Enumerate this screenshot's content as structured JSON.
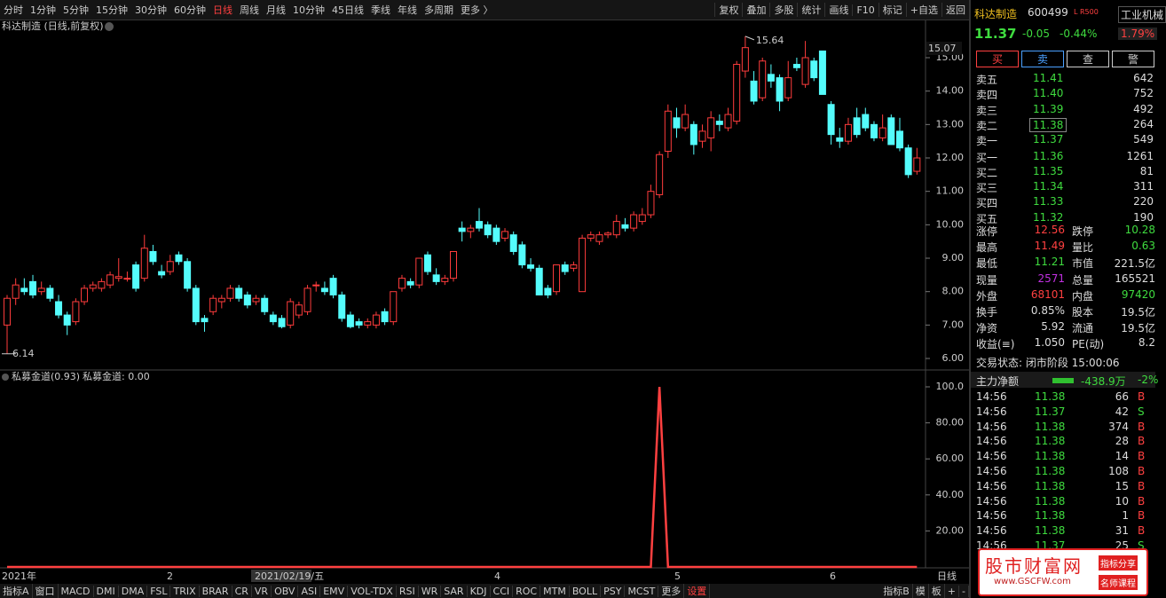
{
  "toolbar": {
    "periods": [
      "分时",
      "1分钟",
      "5分钟",
      "15分钟",
      "30分钟",
      "60分钟",
      "日线",
      "周线",
      "月线",
      "10分钟",
      "45日线",
      "季线",
      "年线",
      "多周期",
      "更多 〉"
    ],
    "tools": [
      "复权",
      "叠加",
      "多股",
      "统计",
      "画线",
      "F10",
      "标记",
      "+自选",
      "返回"
    ]
  },
  "kline": {
    "title": "科达制造 (日线,前复权)",
    "yticks": [
      {
        "value": 6,
        "label": "6.00"
      },
      {
        "value": 7,
        "label": "7.00"
      },
      {
        "value": 8,
        "label": "8.00"
      },
      {
        "value": 9,
        "label": "9.00"
      },
      {
        "value": 10,
        "label": "10.00"
      },
      {
        "value": 11,
        "label": "11.00"
      },
      {
        "value": 12,
        "label": "12.00"
      },
      {
        "value": 13,
        "label": "13.00"
      },
      {
        "value": 14,
        "label": "14.00"
      },
      {
        "value": 15,
        "label": "15.00"
      }
    ],
    "axis_top_label": "15.07",
    "high_label": "15.64",
    "low_label": "6.14",
    "candles": [
      [
        7.0,
        7.9,
        6.14,
        7.8
      ],
      [
        7.8,
        8.4,
        7.6,
        8.2
      ],
      [
        8.1,
        8.4,
        7.9,
        8.0
      ],
      [
        8.3,
        8.5,
        7.8,
        7.9
      ],
      [
        8.0,
        8.3,
        7.9,
        8.1
      ],
      [
        8.1,
        8.2,
        7.7,
        7.8
      ],
      [
        7.7,
        7.9,
        7.2,
        7.3
      ],
      [
        7.3,
        7.4,
        6.7,
        7.0
      ],
      [
        7.1,
        7.8,
        7.0,
        7.7
      ],
      [
        7.7,
        8.2,
        7.6,
        8.1
      ],
      [
        8.1,
        8.3,
        8.0,
        8.2
      ],
      [
        8.1,
        8.4,
        8.0,
        8.3
      ],
      [
        8.2,
        8.6,
        8.1,
        8.5
      ],
      [
        8.4,
        9.0,
        8.3,
        8.45
      ],
      [
        8.4,
        8.6,
        8.3,
        8.4
      ],
      [
        8.8,
        8.9,
        8.0,
        8.1
      ],
      [
        8.4,
        9.7,
        8.3,
        9.3
      ],
      [
        9.2,
        9.4,
        8.8,
        8.9
      ],
      [
        8.6,
        8.8,
        8.4,
        8.5
      ],
      [
        8.6,
        9.1,
        8.5,
        8.9
      ],
      [
        9.1,
        9.2,
        8.8,
        8.9
      ],
      [
        8.9,
        9.0,
        8.0,
        8.1
      ],
      [
        8.1,
        8.2,
        7.0,
        7.1
      ],
      [
        7.2,
        7.3,
        6.8,
        7.1
      ],
      [
        7.4,
        7.9,
        7.3,
        7.8
      ],
      [
        7.7,
        7.9,
        7.5,
        7.8
      ],
      [
        7.8,
        8.2,
        7.7,
        8.1
      ],
      [
        8.1,
        8.2,
        7.7,
        7.8
      ],
      [
        7.9,
        8.0,
        7.5,
        7.6
      ],
      [
        7.7,
        7.9,
        7.6,
        7.8
      ],
      [
        7.8,
        7.9,
        7.3,
        7.4
      ],
      [
        7.3,
        7.4,
        7.0,
        7.1
      ],
      [
        7.2,
        7.3,
        6.9,
        6.95
      ],
      [
        7.0,
        7.8,
        6.9,
        7.7
      ],
      [
        7.3,
        7.7,
        7.2,
        7.6
      ],
      [
        7.4,
        8.2,
        7.3,
        8.1
      ],
      [
        8.2,
        8.3,
        8.0,
        8.2
      ],
      [
        8.1,
        8.3,
        7.9,
        8.0
      ],
      [
        8.4,
        8.5,
        7.8,
        7.9
      ],
      [
        7.9,
        8.0,
        7.1,
        7.2
      ],
      [
        7.3,
        7.4,
        6.9,
        6.95
      ],
      [
        7.1,
        7.2,
        6.9,
        7.0
      ],
      [
        7.0,
        7.2,
        6.9,
        7.1
      ],
      [
        7.0,
        7.4,
        6.9,
        7.3
      ],
      [
        7.4,
        7.5,
        7.0,
        7.1
      ],
      [
        7.1,
        8.0,
        7.0,
        8.0
      ],
      [
        8.1,
        8.5,
        8.0,
        8.4
      ],
      [
        8.3,
        8.4,
        8.1,
        8.2
      ],
      [
        8.2,
        9.0,
        8.1,
        9.0
      ],
      [
        9.1,
        9.2,
        8.5,
        8.6
      ],
      [
        8.5,
        8.7,
        8.2,
        8.3
      ],
      [
        8.3,
        8.5,
        8.2,
        8.4
      ],
      [
        8.4,
        9.2,
        8.3,
        9.2
      ],
      [
        9.9,
        10.1,
        9.5,
        9.8
      ],
      [
        9.8,
        10.0,
        9.6,
        9.9
      ],
      [
        10.1,
        10.5,
        9.8,
        9.9
      ],
      [
        10.0,
        10.1,
        9.6,
        9.7
      ],
      [
        9.9,
        10.0,
        9.4,
        9.5
      ],
      [
        9.6,
        9.9,
        9.5,
        9.8
      ],
      [
        9.7,
        9.8,
        9.1,
        9.2
      ],
      [
        9.4,
        9.5,
        8.7,
        8.8
      ],
      [
        8.8,
        9.0,
        8.6,
        8.7
      ],
      [
        8.7,
        8.8,
        7.9,
        7.9
      ],
      [
        8.1,
        8.2,
        7.8,
        7.9
      ],
      [
        8.0,
        8.8,
        7.9,
        8.8
      ],
      [
        8.8,
        8.9,
        8.5,
        8.6
      ],
      [
        8.7,
        8.9,
        8.6,
        8.8
      ],
      [
        8.0,
        9.7,
        8.0,
        9.6
      ],
      [
        9.6,
        9.8,
        9.5,
        9.7
      ],
      [
        9.5,
        9.8,
        9.4,
        9.7
      ],
      [
        9.7,
        9.8,
        9.6,
        9.75
      ],
      [
        9.7,
        10.3,
        9.6,
        10.1
      ],
      [
        10.0,
        10.2,
        9.8,
        9.9
      ],
      [
        9.9,
        10.4,
        9.8,
        10.3
      ],
      [
        10.1,
        10.5,
        10.0,
        10.3
      ],
      [
        10.3,
        11.2,
        10.2,
        11.0
      ],
      [
        10.9,
        12.2,
        10.8,
        12.1
      ],
      [
        12.2,
        13.6,
        12.0,
        13.4
      ],
      [
        13.2,
        13.5,
        12.6,
        12.9
      ],
      [
        12.9,
        13.6,
        12.8,
        13.3
      ],
      [
        13.0,
        13.1,
        12.1,
        12.4
      ],
      [
        12.5,
        13.0,
        12.3,
        12.8
      ],
      [
        12.6,
        13.4,
        12.2,
        13.2
      ],
      [
        13.1,
        13.3,
        12.8,
        13.0
      ],
      [
        12.9,
        13.5,
        12.8,
        13.3
      ],
      [
        13.1,
        14.9,
        13.0,
        14.8
      ],
      [
        14.6,
        15.64,
        14.4,
        15.3
      ],
      [
        14.3,
        14.6,
        13.6,
        13.7
      ],
      [
        13.8,
        15.0,
        13.7,
        14.9
      ],
      [
        14.5,
        14.8,
        14.1,
        14.3
      ],
      [
        14.4,
        14.5,
        13.4,
        13.7
      ],
      [
        13.8,
        14.9,
        13.7,
        14.4
      ],
      [
        14.8,
        15.0,
        14.6,
        14.7
      ],
      [
        14.2,
        15.5,
        14.1,
        15.0
      ],
      [
        14.9,
        15.0,
        14.3,
        14.4
      ],
      [
        15.2,
        15.2,
        13.9,
        13.9
      ],
      [
        13.6,
        13.7,
        12.4,
        12.7
      ],
      [
        12.6,
        12.9,
        12.3,
        12.5
      ],
      [
        12.5,
        13.2,
        12.4,
        13.0
      ],
      [
        13.2,
        13.5,
        12.6,
        12.7
      ],
      [
        13.3,
        13.5,
        12.8,
        12.9
      ],
      [
        13.0,
        13.1,
        12.5,
        12.6
      ],
      [
        12.6,
        13.3,
        12.5,
        12.9
      ],
      [
        13.2,
        13.3,
        12.4,
        12.4
      ],
      [
        12.8,
        13.2,
        12.2,
        12.3
      ],
      [
        12.3,
        12.4,
        11.4,
        11.5
      ],
      [
        11.6,
        12.3,
        11.5,
        12.0
      ]
    ]
  },
  "indicator": {
    "title": "私募金道(0.93)",
    "value_label": "私募金道: 0.00",
    "yticks": [
      {
        "value": 20,
        "label": "20.00"
      },
      {
        "value": 40,
        "label": "40.00"
      },
      {
        "value": 60,
        "label": "60.00"
      },
      {
        "value": 80,
        "label": "80.00"
      },
      {
        "value": 100,
        "label": "100.0"
      }
    ],
    "values": [
      0,
      0,
      0,
      0,
      0,
      0,
      0,
      0,
      0,
      0,
      0,
      0,
      0,
      0,
      0,
      0,
      0,
      0,
      0,
      0,
      0,
      0,
      0,
      0,
      0,
      0,
      0,
      0,
      0,
      0,
      0,
      0,
      0,
      0,
      0,
      0,
      0,
      0,
      0,
      0,
      0,
      0,
      0,
      0,
      0,
      0,
      0,
      0,
      0,
      0,
      0,
      0,
      0,
      0,
      0,
      0,
      0,
      0,
      0,
      0,
      0,
      0,
      0,
      0,
      0,
      0,
      0,
      0,
      0,
      0,
      0,
      0,
      0,
      0,
      0,
      0,
      100,
      0,
      0,
      0,
      0,
      0,
      0,
      0,
      0,
      0,
      0,
      0,
      0,
      0,
      0,
      0,
      0,
      0,
      0,
      0,
      0,
      0,
      0,
      0,
      0,
      0,
      0,
      0,
      0,
      0,
      0
    ]
  },
  "x_axis": {
    "labels": [
      "2021年",
      "2",
      "2021/02/19/五",
      "4",
      "5",
      "6"
    ],
    "period": "日线"
  },
  "bottom_tabs": {
    "left": [
      "指标A",
      "窗口",
      "MACD",
      "DMI",
      "DMA",
      "FSL",
      "TRIX",
      "BRAR",
      "CR",
      "VR",
      "OBV",
      "ASI",
      "EMV",
      "VOL-TDX",
      "RSI",
      "WR",
      "SAR",
      "KDJ",
      "CCI",
      "ROC",
      "MTM",
      "BOLL",
      "PSY",
      "MCST",
      "更多",
      "设置"
    ],
    "right": [
      "指标B",
      "模",
      "板",
      "+",
      "-"
    ]
  },
  "quote": {
    "name": "科达制造",
    "code": "600499",
    "tag": "L R500",
    "industry": "工业机械",
    "price": "11.37",
    "change": "-0.05",
    "pct": "-0.44%",
    "industry_pct": "1.79%",
    "buttons": [
      "买",
      "卖",
      "查",
      "警"
    ],
    "book": [
      [
        "卖五",
        "11.41",
        "642"
      ],
      [
        "卖四",
        "11.40",
        "752"
      ],
      [
        "卖三",
        "11.39",
        "492"
      ],
      [
        "卖二",
        "11.38",
        "264"
      ],
      [
        "卖一",
        "11.37",
        "549"
      ],
      [
        "买一",
        "11.36",
        "1261"
      ],
      [
        "买二",
        "11.35",
        "81"
      ],
      [
        "买三",
        "11.34",
        "311"
      ],
      [
        "买四",
        "11.33",
        "220"
      ],
      [
        "买五",
        "11.32",
        "190"
      ]
    ],
    "stats": [
      [
        "涨停",
        "12.56",
        "跌停",
        "10.28"
      ],
      [
        "最高",
        "11.49",
        "量比",
        "0.63"
      ],
      [
        "最低",
        "11.21",
        "市值",
        "221.5亿"
      ],
      [
        "现量",
        "2571",
        "总量",
        "165521"
      ],
      [
        "外盘",
        "68101",
        "内盘",
        "97420"
      ],
      [
        "换手",
        "0.85%",
        "股本",
        "19.5亿"
      ],
      [
        "净资",
        "5.92",
        "流通",
        "19.5亿"
      ],
      [
        "收益(≡)",
        "1.050",
        "PE(动)",
        "8.2"
      ]
    ],
    "status": "交易状态: 闭市阶段 15:00:06",
    "flow_label": "主力净额",
    "flow_value": "-438.9万",
    "flow_pct": "-2%",
    "trades": [
      [
        "14:56",
        "11.38",
        "66",
        "B"
      ],
      [
        "14:56",
        "11.37",
        "42",
        "S"
      ],
      [
        "14:56",
        "11.38",
        "374",
        "B"
      ],
      [
        "14:56",
        "11.38",
        "28",
        "B"
      ],
      [
        "14:56",
        "11.38",
        "14",
        "B"
      ],
      [
        "14:56",
        "11.38",
        "108",
        "B"
      ],
      [
        "14:56",
        "11.38",
        "15",
        "B"
      ],
      [
        "14:56",
        "11.38",
        "10",
        "B"
      ],
      [
        "14:56",
        "11.38",
        "1",
        "B"
      ],
      [
        "14:56",
        "11.38",
        "31",
        "B"
      ],
      [
        "14:56",
        "11.37",
        "25",
        "S"
      ]
    ]
  },
  "watermark": {
    "title": "股市财富网",
    "url": "www.GSCFW.com",
    "tags": [
      "指标分享",
      "名师课程"
    ]
  }
}
